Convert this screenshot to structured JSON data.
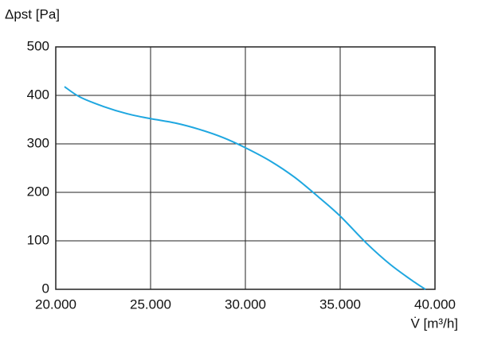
{
  "chart_data": {
    "type": "line",
    "y_label": "Δpst [Pa]",
    "x_label": "V̇ [m³/h]",
    "x": [
      20460,
      21260,
      22520,
      23780,
      25000,
      26300,
      27560,
      28820,
      30000,
      31340,
      32600,
      33870,
      35000,
      36390,
      37650,
      38910,
      39500
    ],
    "series": [
      {
        "color": "#1fa7e0",
        "values": [
          418,
          397,
          377,
          362,
          352,
          343,
          330,
          313,
          292,
          264,
          231,
          190,
          151,
          95,
          51,
          15,
          0
        ]
      }
    ],
    "xlim": [
      20000,
      40000
    ],
    "xticks": [
      {
        "value": 20000,
        "label": "20.000"
      },
      {
        "value": 25000,
        "label": "25.000"
      },
      {
        "value": 30000,
        "label": "30.000"
      },
      {
        "value": 35000,
        "label": "35.000"
      },
      {
        "value": 40000,
        "label": "40.000"
      }
    ],
    "ylim": [
      0,
      500
    ],
    "yticks": [
      0,
      100,
      200,
      300,
      400,
      500
    ],
    "grid": true
  }
}
